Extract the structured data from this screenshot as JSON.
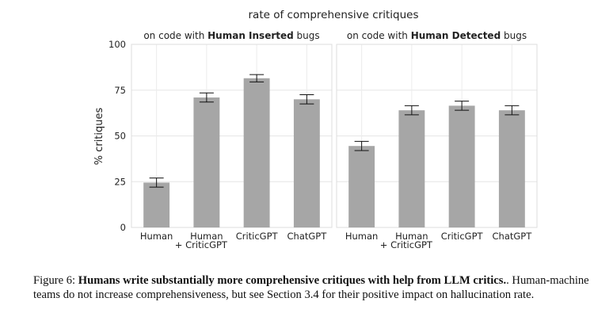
{
  "chart_data": {
    "type": "bar",
    "title": "rate of comprehensive critiques",
    "ylabel": "% critiques",
    "ylim": [
      0,
      100
    ],
    "yticks": [
      0,
      25,
      50,
      75,
      100
    ],
    "grid": true,
    "bar_color": "#a6a6a6",
    "panels": [
      {
        "title_prefix": "on code with ",
        "title_bold": "Human Inserted",
        "title_suffix": " bugs",
        "categories": [
          {
            "line1": "Human",
            "line2": ""
          },
          {
            "line1": "Human",
            "line2": "+ CriticGPT"
          },
          {
            "line1": "CriticGPT",
            "line2": ""
          },
          {
            "line1": "ChatGPT",
            "line2": ""
          }
        ],
        "values": [
          24.5,
          71,
          81.5,
          70
        ],
        "error_low": [
          22,
          68.5,
          79.5,
          67.5
        ],
        "error_high": [
          27,
          73.5,
          83.5,
          72.5
        ]
      },
      {
        "title_prefix": "on code with ",
        "title_bold": "Human Detected",
        "title_suffix": " bugs",
        "categories": [
          {
            "line1": "Human",
            "line2": ""
          },
          {
            "line1": "Human",
            "line2": "+ CriticGPT"
          },
          {
            "line1": "CriticGPT",
            "line2": ""
          },
          {
            "line1": "ChatGPT",
            "line2": ""
          }
        ],
        "values": [
          44.5,
          64,
          66.5,
          64
        ],
        "error_low": [
          42,
          61.5,
          64,
          61.5
        ],
        "error_high": [
          47,
          66.5,
          69,
          66.5
        ]
      }
    ]
  },
  "caption": {
    "prefix": "Figure 6: ",
    "bold": "Humans write substantially more comprehensive critiques with help from LLM critics.",
    "rest": ". Human-machine teams do not increase comprehensiveness, but see Section 3.4 for their positive impact on hallucination rate."
  }
}
